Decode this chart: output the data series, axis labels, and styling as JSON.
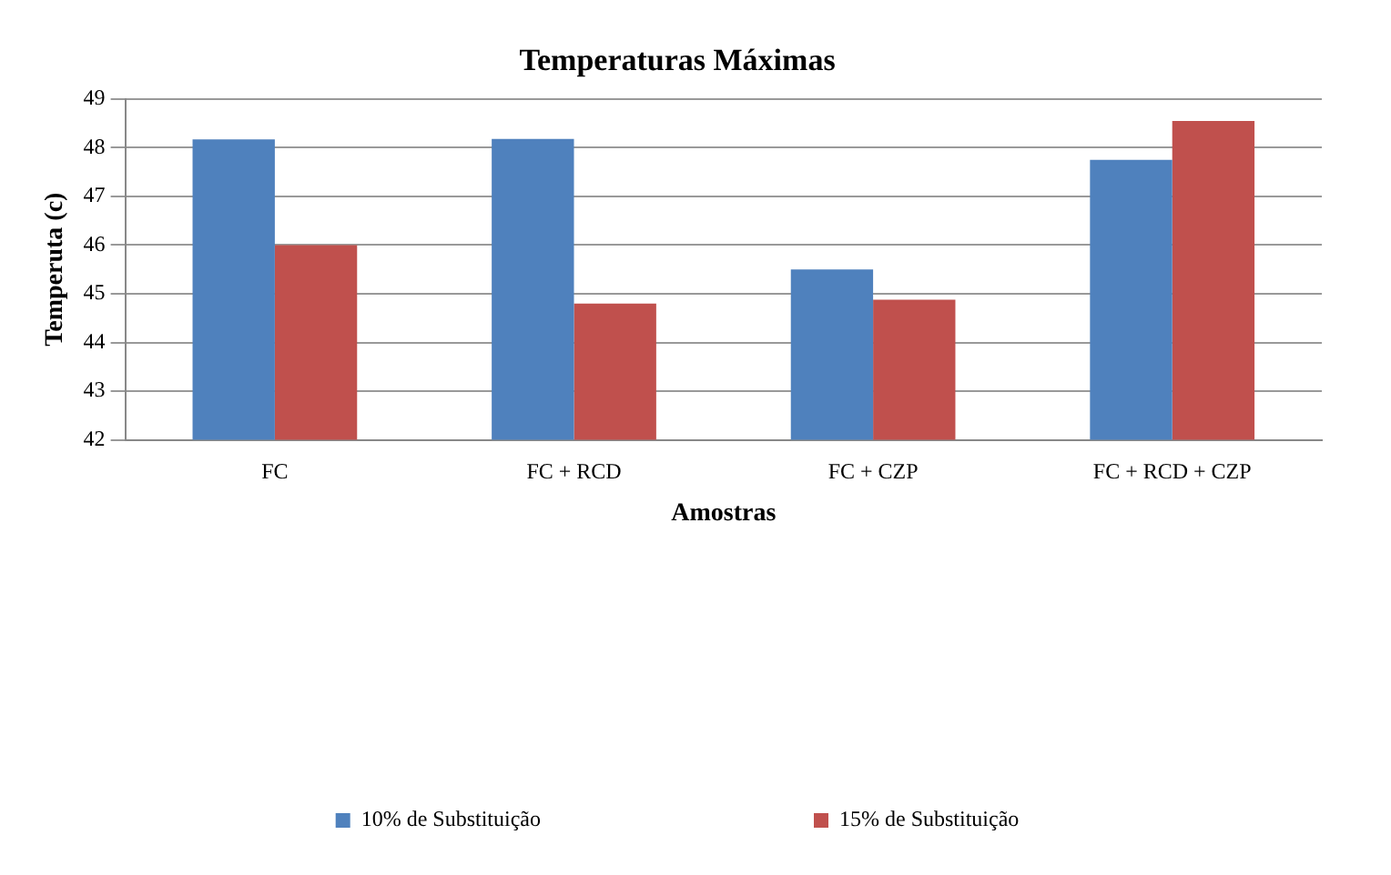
{
  "chart_data": {
    "type": "bar",
    "title": "Temperaturas Máximas",
    "xlabel": "Amostras",
    "ylabel": "Temperuta (c)",
    "categories": [
      "FC",
      "FC + RCD",
      "FC + CZP",
      "FC + RCD + CZP"
    ],
    "series": [
      {
        "name": "10% de Substituição",
        "color": "#4f81bd",
        "values": [
          48.17,
          48.18,
          45.5,
          47.75
        ]
      },
      {
        "name": "15% de Substituição",
        "color": "#c0504d",
        "values": [
          46.0,
          44.8,
          44.88,
          48.55
        ]
      }
    ],
    "ylim": [
      42,
      49
    ],
    "yticks": [
      42,
      43,
      44,
      45,
      46,
      47,
      48,
      49
    ],
    "grid": "y",
    "legend": "bottom"
  }
}
